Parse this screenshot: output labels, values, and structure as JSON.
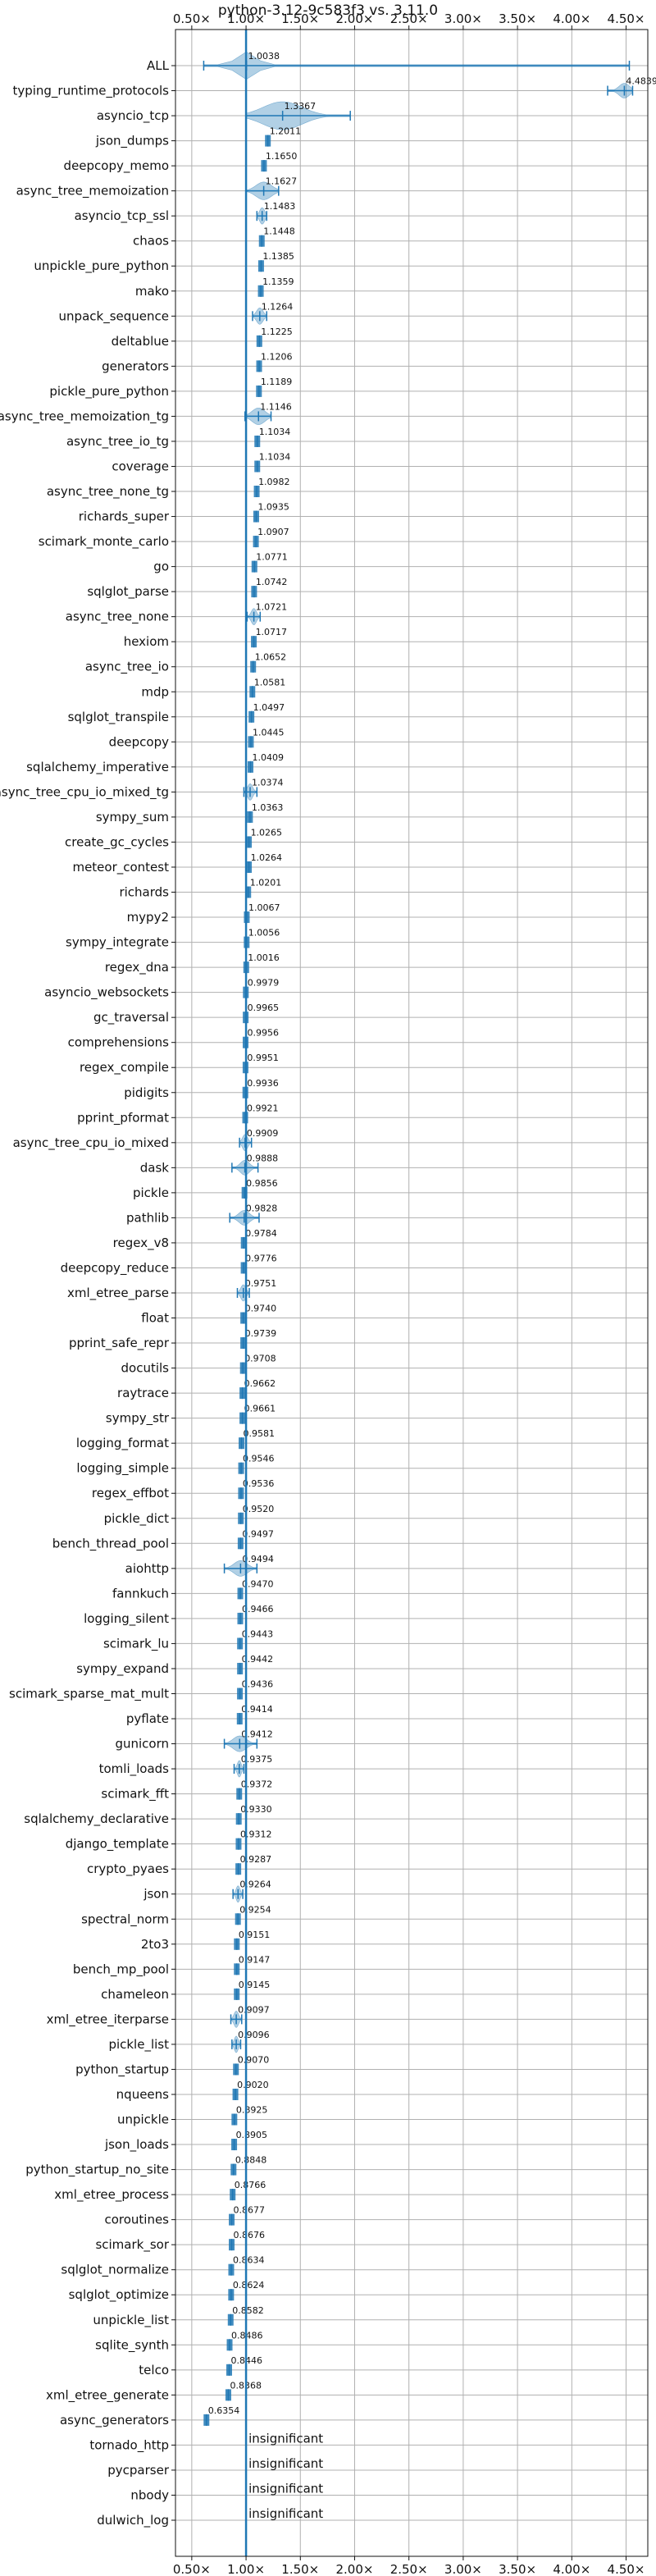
{
  "colors": {
    "series": "#1f77b4",
    "grid": "#b0b0b0",
    "text": "#111111"
  },
  "chart_data": {
    "type": "violin",
    "title": "python-3.12-9c583f3 vs. 3.11.0",
    "xlim": [
      0.35,
      4.7
    ],
    "xticks": [
      0.5,
      1.0,
      1.5,
      2.0,
      2.5,
      3.0,
      3.5,
      4.0,
      4.5
    ],
    "xtick_labels": [
      "0.50×",
      "1.00×",
      "1.50×",
      "2.00×",
      "2.50×",
      "3.00×",
      "3.50×",
      "4.00×",
      "4.50×"
    ],
    "grid": true,
    "reference_line": 1.0,
    "insignificant_label": "insignificant",
    "benchmarks": [
      {
        "name": "ALL",
        "value": 1.0038,
        "label": "1.0038",
        "low": 0.61,
        "high": 4.53,
        "wide": 0.15,
        "spread": 0.18
      },
      {
        "name": "typing_runtime_protocols",
        "value": 4.4839,
        "label": "4.4839",
        "low": 4.33,
        "high": 4.56,
        "wide": 0.08,
        "spread": 0.05
      },
      {
        "name": "asyncio_tcp",
        "value": 1.3367,
        "label": "1.3367",
        "low": 1.0,
        "high": 1.96,
        "wide": 0.3,
        "spread": 0.2
      },
      {
        "name": "json_dumps",
        "value": 1.2011,
        "label": "1.2011"
      },
      {
        "name": "deepcopy_memo",
        "value": 1.165,
        "label": "1.1650"
      },
      {
        "name": "async_tree_memoization",
        "value": 1.1627,
        "label": "1.1627",
        "low": 1.0,
        "high": 1.3,
        "wide": 0.12,
        "spread": 0.08
      },
      {
        "name": "asyncio_tcp_ssl",
        "value": 1.1483,
        "label": "1.1483",
        "low": 1.1,
        "high": 1.19,
        "wide": 0.04
      },
      {
        "name": "chaos",
        "value": 1.1448,
        "label": "1.1448"
      },
      {
        "name": "unpickle_pure_python",
        "value": 1.1385,
        "label": "1.1385"
      },
      {
        "name": "mako",
        "value": 1.1359,
        "label": "1.1359"
      },
      {
        "name": "unpack_sequence",
        "value": 1.1264,
        "label": "1.1264",
        "low": 1.06,
        "high": 1.19,
        "wide": 0.05
      },
      {
        "name": "deltablue",
        "value": 1.1225,
        "label": "1.1225"
      },
      {
        "name": "generators",
        "value": 1.1206,
        "label": "1.1206"
      },
      {
        "name": "pickle_pure_python",
        "value": 1.1189,
        "label": "1.1189"
      },
      {
        "name": "async_tree_memoization_tg",
        "value": 1.1146,
        "label": "1.1146",
        "low": 0.99,
        "high": 1.23,
        "wide": 0.1,
        "spread": 0.07
      },
      {
        "name": "async_tree_io_tg",
        "value": 1.1034,
        "label": "1.1034"
      },
      {
        "name": "coverage",
        "value": 1.1034,
        "label": "1.1034"
      },
      {
        "name": "async_tree_none_tg",
        "value": 1.0982,
        "label": "1.0982"
      },
      {
        "name": "richards_super",
        "value": 1.0935,
        "label": "1.0935"
      },
      {
        "name": "scimark_monte_carlo",
        "value": 1.0907,
        "label": "1.0907"
      },
      {
        "name": "go",
        "value": 1.0771,
        "label": "1.0771"
      },
      {
        "name": "sqlglot_parse",
        "value": 1.0742,
        "label": "1.0742"
      },
      {
        "name": "async_tree_none",
        "value": 1.0721,
        "label": "1.0721",
        "low": 1.01,
        "high": 1.13,
        "wide": 0.04
      },
      {
        "name": "hexiom",
        "value": 1.0717,
        "label": "1.0717"
      },
      {
        "name": "async_tree_io",
        "value": 1.0652,
        "label": "1.0652"
      },
      {
        "name": "mdp",
        "value": 1.0581,
        "label": "1.0581"
      },
      {
        "name": "sqlglot_transpile",
        "value": 1.0497,
        "label": "1.0497"
      },
      {
        "name": "deepcopy",
        "value": 1.0445,
        "label": "1.0445"
      },
      {
        "name": "sqlalchemy_imperative",
        "value": 1.0409,
        "label": "1.0409"
      },
      {
        "name": "async_tree_cpu_io_mixed_tg",
        "value": 1.0374,
        "label": "1.0374",
        "low": 0.98,
        "high": 1.1,
        "wide": 0.04
      },
      {
        "name": "sympy_sum",
        "value": 1.0363,
        "label": "1.0363"
      },
      {
        "name": "create_gc_cycles",
        "value": 1.0265,
        "label": "1.0265"
      },
      {
        "name": "meteor_contest",
        "value": 1.0264,
        "label": "1.0264"
      },
      {
        "name": "richards",
        "value": 1.0201,
        "label": "1.0201"
      },
      {
        "name": "mypy2",
        "value": 1.0067,
        "label": "1.0067"
      },
      {
        "name": "sympy_integrate",
        "value": 1.0056,
        "label": "1.0056"
      },
      {
        "name": "regex_dna",
        "value": 1.0016,
        "label": "1.0016"
      },
      {
        "name": "asyncio_websockets",
        "value": 0.9979,
        "label": "0.9979"
      },
      {
        "name": "gc_traversal",
        "value": 0.9965,
        "label": "0.9965"
      },
      {
        "name": "comprehensions",
        "value": 0.9956,
        "label": "0.9956"
      },
      {
        "name": "regex_compile",
        "value": 0.9951,
        "label": "0.9951"
      },
      {
        "name": "pidigits",
        "value": 0.9936,
        "label": "0.9936"
      },
      {
        "name": "pprint_pformat",
        "value": 0.9921,
        "label": "0.9921"
      },
      {
        "name": "async_tree_cpu_io_mixed",
        "value": 0.9909,
        "label": "0.9909",
        "low": 0.94,
        "high": 1.05,
        "wide": 0.04
      },
      {
        "name": "dask",
        "value": 0.9888,
        "label": "0.9888",
        "low": 0.87,
        "high": 1.11,
        "wide": 0.07,
        "spread": 0.05
      },
      {
        "name": "pickle",
        "value": 0.9856,
        "label": "0.9856"
      },
      {
        "name": "pathlib",
        "value": 0.9828,
        "label": "0.9828",
        "low": 0.85,
        "high": 1.12,
        "wide": 0.08,
        "spread": 0.05
      },
      {
        "name": "regex_v8",
        "value": 0.9784,
        "label": "0.9784"
      },
      {
        "name": "deepcopy_reduce",
        "value": 0.9776,
        "label": "0.9776"
      },
      {
        "name": "xml_etree_parse",
        "value": 0.9751,
        "label": "0.9751",
        "low": 0.92,
        "high": 1.03,
        "wide": 0.04
      },
      {
        "name": "float",
        "value": 0.974,
        "label": "0.9740"
      },
      {
        "name": "pprint_safe_repr",
        "value": 0.9739,
        "label": "0.9739"
      },
      {
        "name": "docutils",
        "value": 0.9708,
        "label": "0.9708"
      },
      {
        "name": "raytrace",
        "value": 0.9662,
        "label": "0.9662"
      },
      {
        "name": "sympy_str",
        "value": 0.9661,
        "label": "0.9661"
      },
      {
        "name": "logging_format",
        "value": 0.9581,
        "label": "0.9581"
      },
      {
        "name": "logging_simple",
        "value": 0.9546,
        "label": "0.9546"
      },
      {
        "name": "regex_effbot",
        "value": 0.9536,
        "label": "0.9536"
      },
      {
        "name": "pickle_dict",
        "value": 0.952,
        "label": "0.9520"
      },
      {
        "name": "bench_thread_pool",
        "value": 0.9497,
        "label": "0.9497"
      },
      {
        "name": "aiohttp",
        "value": 0.9494,
        "label": "0.9494",
        "low": 0.8,
        "high": 1.1,
        "wide": 0.1,
        "spread": 0.06
      },
      {
        "name": "fannkuch",
        "value": 0.947,
        "label": "0.9470"
      },
      {
        "name": "logging_silent",
        "value": 0.9466,
        "label": "0.9466"
      },
      {
        "name": "scimark_lu",
        "value": 0.9443,
        "label": "0.9443"
      },
      {
        "name": "sympy_expand",
        "value": 0.9442,
        "label": "0.9442"
      },
      {
        "name": "scimark_sparse_mat_mult",
        "value": 0.9436,
        "label": "0.9436"
      },
      {
        "name": "pyflate",
        "value": 0.9414,
        "label": "0.9414"
      },
      {
        "name": "gunicorn",
        "value": 0.9412,
        "label": "0.9412",
        "low": 0.8,
        "high": 1.1,
        "wide": 0.1,
        "spread": 0.06
      },
      {
        "name": "tomli_loads",
        "value": 0.9375,
        "label": "0.9375",
        "low": 0.89,
        "high": 0.98,
        "wide": 0.03
      },
      {
        "name": "scimark_fft",
        "value": 0.9372,
        "label": "0.9372"
      },
      {
        "name": "sqlalchemy_declarative",
        "value": 0.933,
        "label": "0.9330"
      },
      {
        "name": "django_template",
        "value": 0.9312,
        "label": "0.9312"
      },
      {
        "name": "crypto_pyaes",
        "value": 0.9287,
        "label": "0.9287"
      },
      {
        "name": "json",
        "value": 0.9264,
        "label": "0.9264",
        "low": 0.88,
        "high": 0.97,
        "wide": 0.03
      },
      {
        "name": "spectral_norm",
        "value": 0.9254,
        "label": "0.9254"
      },
      {
        "name": "2to3",
        "value": 0.9151,
        "label": "0.9151"
      },
      {
        "name": "bench_mp_pool",
        "value": 0.9147,
        "label": "0.9147"
      },
      {
        "name": "chameleon",
        "value": 0.9145,
        "label": "0.9145"
      },
      {
        "name": "xml_etree_iterparse",
        "value": 0.9097,
        "label": "0.9097",
        "low": 0.86,
        "high": 0.96,
        "wide": 0.035
      },
      {
        "name": "pickle_list",
        "value": 0.9096,
        "label": "0.9096",
        "low": 0.87,
        "high": 0.95,
        "wide": 0.03
      },
      {
        "name": "python_startup",
        "value": 0.907,
        "label": "0.9070"
      },
      {
        "name": "nqueens",
        "value": 0.902,
        "label": "0.9020"
      },
      {
        "name": "unpickle",
        "value": 0.8925,
        "label": "0.8925"
      },
      {
        "name": "json_loads",
        "value": 0.8905,
        "label": "0.8905"
      },
      {
        "name": "python_startup_no_site",
        "value": 0.8848,
        "label": "0.8848"
      },
      {
        "name": "xml_etree_process",
        "value": 0.8766,
        "label": "0.8766"
      },
      {
        "name": "coroutines",
        "value": 0.8677,
        "label": "0.8677"
      },
      {
        "name": "scimark_sor",
        "value": 0.8676,
        "label": "0.8676"
      },
      {
        "name": "sqlglot_normalize",
        "value": 0.8634,
        "label": "0.8634"
      },
      {
        "name": "sqlglot_optimize",
        "value": 0.8624,
        "label": "0.8624"
      },
      {
        "name": "unpickle_list",
        "value": 0.8582,
        "label": "0.8582"
      },
      {
        "name": "sqlite_synth",
        "value": 0.8486,
        "label": "0.8486"
      },
      {
        "name": "telco",
        "value": 0.8446,
        "label": "0.8446"
      },
      {
        "name": "xml_etree_generate",
        "value": 0.8368,
        "label": "0.8368"
      },
      {
        "name": "async_generators",
        "value": 0.6354,
        "label": "0.6354"
      },
      {
        "name": "tornado_http",
        "value": null,
        "label": null
      },
      {
        "name": "pycparser",
        "value": null,
        "label": null
      },
      {
        "name": "nbody",
        "value": null,
        "label": null
      },
      {
        "name": "dulwich_log",
        "value": null,
        "label": null
      }
    ]
  }
}
